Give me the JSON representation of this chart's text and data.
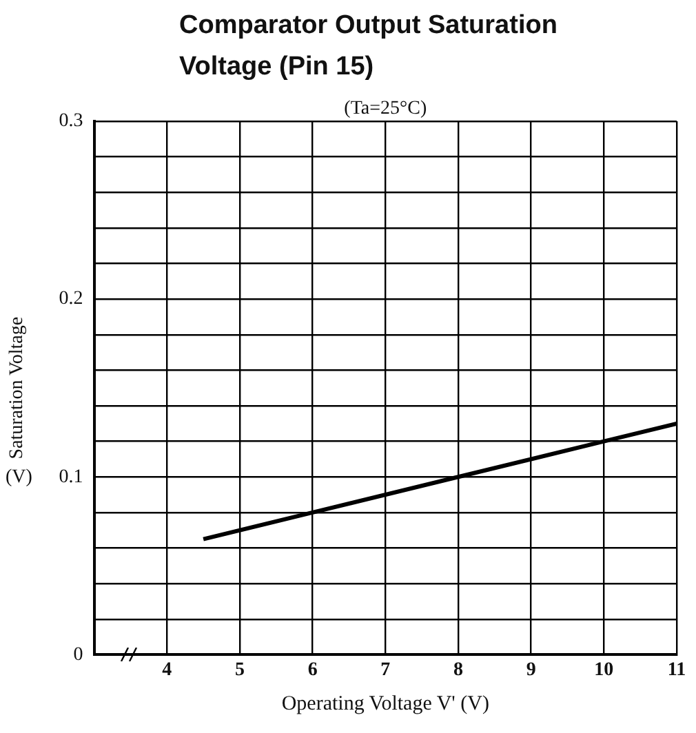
{
  "chart_data": {
    "type": "line",
    "title": "Comparator Output Saturation Voltage (Pin 15)",
    "xlabel": "Operating Voltage V' (V)",
    "ylabel": "Saturation Voltage",
    "annotations": [
      "(Ta=25°C)",
      "(V)"
    ],
    "x": [
      4.5,
      6,
      8,
      10,
      11
    ],
    "series": [
      {
        "color": "#000000",
        "values": [
          0.065,
          0.08,
          0.1,
          0.12,
          0.13
        ]
      }
    ],
    "xlim": [
      3,
      11
    ],
    "xticks": [
      4,
      5,
      6,
      7,
      8,
      9,
      10,
      11
    ],
    "ylim": [
      0,
      0.3
    ],
    "yticks": [
      0,
      {
        "value": 0.02,
        "label": null
      },
      {
        "value": 0.04,
        "label": null
      },
      {
        "value": 0.06,
        "label": null
      },
      {
        "value": 0.08,
        "label": null
      },
      0.1,
      {
        "value": 0.12,
        "label": null
      },
      {
        "value": 0.14,
        "label": null
      },
      {
        "value": 0.16,
        "label": null
      },
      {
        "value": 0.18,
        "label": null
      },
      0.2,
      {
        "value": 0.22,
        "label": null
      },
      {
        "value": 0.24,
        "label": null
      },
      {
        "value": 0.26,
        "label": null
      },
      {
        "value": 0.28,
        "label": null
      },
      0.3
    ],
    "grid": true,
    "legend": false,
    "marker": "none",
    "line_style": "solid"
  }
}
